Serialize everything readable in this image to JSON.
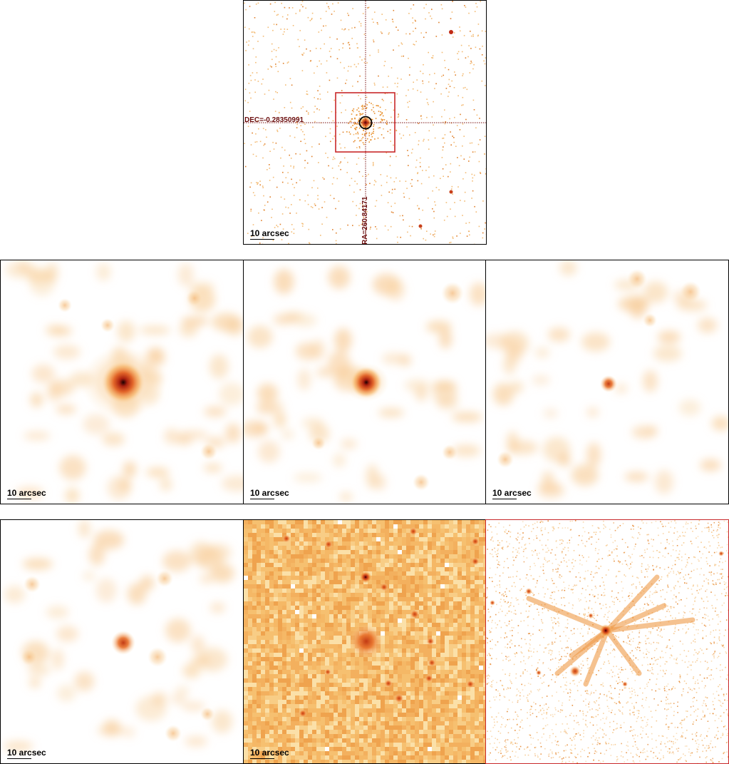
{
  "scale_label": "10 arcsec",
  "top_panel": {
    "dec_label": "DEC=-0.28350991",
    "ra_label": "RA=260.84171"
  },
  "colors": {
    "panel_border": "#000000",
    "highlight_border": "#c8282a",
    "crosshair": "#7a1010",
    "colormap_low": "#fde6c0",
    "colormap_mid": "#f0a040",
    "colormap_high": "#b8281a",
    "colormap_peak": "#1a0000"
  },
  "panels": [
    {
      "id": "overview",
      "icon": "sky-overview-image"
    },
    {
      "id": "row2-left",
      "icon": "smoothed-xray-image"
    },
    {
      "id": "row2-mid",
      "icon": "smoothed-xray-image"
    },
    {
      "id": "row2-right",
      "icon": "smoothed-xray-image"
    },
    {
      "id": "row3-left",
      "icon": "smoothed-xray-image"
    },
    {
      "id": "row3-mid",
      "icon": "optical-image"
    },
    {
      "id": "row3-right",
      "icon": "high-resolution-image"
    }
  ]
}
